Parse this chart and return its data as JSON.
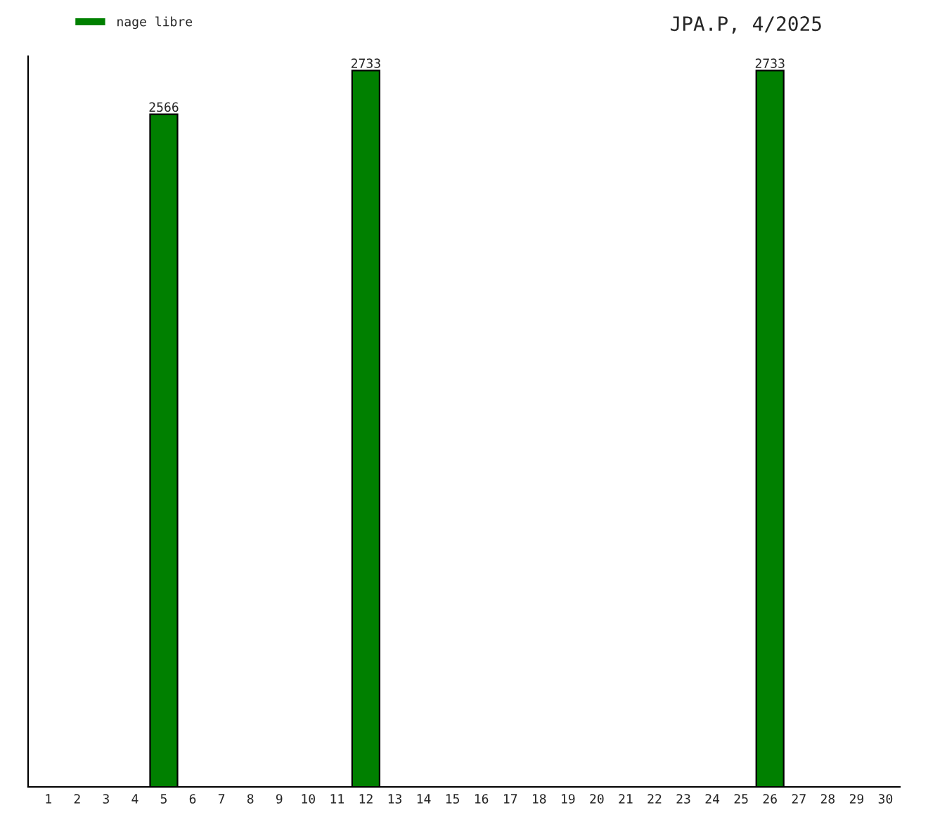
{
  "chart_data": {
    "type": "bar",
    "title": "JPA.P, 4/2025",
    "categories": [
      "1",
      "2",
      "3",
      "4",
      "5",
      "6",
      "7",
      "8",
      "9",
      "10",
      "11",
      "12",
      "13",
      "14",
      "15",
      "16",
      "17",
      "18",
      "19",
      "20",
      "21",
      "22",
      "23",
      "24",
      "25",
      "26",
      "27",
      "28",
      "29",
      "30"
    ],
    "series": [
      {
        "name": "nage libre",
        "color": "#008000",
        "values": [
          null,
          null,
          null,
          null,
          2566,
          null,
          null,
          null,
          null,
          null,
          null,
          2733,
          null,
          null,
          null,
          null,
          null,
          null,
          null,
          null,
          null,
          null,
          null,
          null,
          null,
          2733,
          null,
          null,
          null,
          null
        ]
      }
    ],
    "data_labels": true,
    "legend": "top left",
    "grid": false
  }
}
